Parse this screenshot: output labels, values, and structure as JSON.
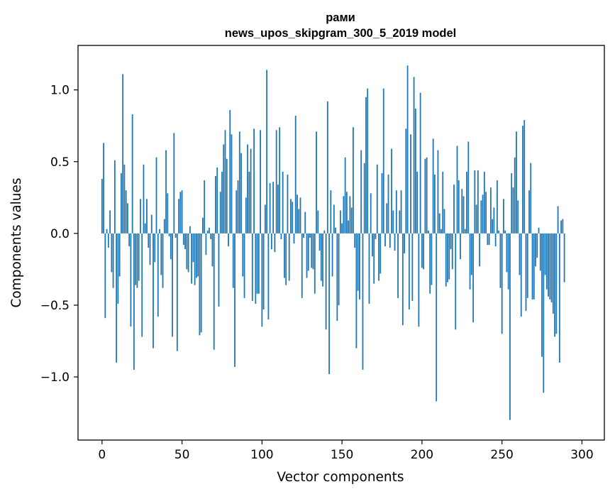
{
  "chart_data": {
    "type": "bar",
    "title_line1": "рами",
    "title_line2": "news_upos_skipgram_300_5_2019 model",
    "xlabel": "Vector components",
    "ylabel": "Components values",
    "xlim": [
      -15,
      314
    ],
    "ylim": [
      -1.44,
      1.31
    ],
    "xticks": [
      0,
      50,
      100,
      150,
      200,
      250,
      300
    ],
    "xtick_labels": [
      "0",
      "50",
      "100",
      "150",
      "200",
      "250",
      "300"
    ],
    "yticks": [
      -1.0,
      -0.5,
      0.0,
      0.5,
      1.0
    ],
    "ytick_labels": [
      "−1.0",
      "−0.5",
      "0.0",
      "0.5",
      "1.0"
    ],
    "grid": false,
    "bar_color": "#1f77b4",
    "values": [
      0.38,
      0.63,
      -0.59,
      0.03,
      -0.1,
      0.16,
      -0.27,
      -0.38,
      0.51,
      -0.9,
      -0.49,
      -0.3,
      0.42,
      1.11,
      0.48,
      0.3,
      0.21,
      -0.09,
      -0.65,
      0.83,
      -0.95,
      -0.36,
      -0.38,
      -0.33,
      0.24,
      -0.72,
      0.48,
      0.07,
      0.24,
      -0.1,
      -0.22,
      0.13,
      -0.8,
      -0.2,
      0.53,
      -0.58,
      0.03,
      -0.29,
      -0.38,
      0.1,
      0.58,
      0.28,
      -0.02,
      -0.18,
      -0.72,
      0.7,
      -0.03,
      -0.82,
      0.24,
      0.29,
      0.3,
      -0.08,
      -0.11,
      -0.25,
      -0.27,
      0.05,
      -0.35,
      -0.2,
      -0.36,
      -0.31,
      -0.3,
      -0.71,
      -0.69,
      0.11,
      0.37,
      -0.15,
      0.02,
      0.04,
      -0.04,
      -0.23,
      -0.81,
      0.4,
      0.46,
      -0.51,
      0.29,
      0.43,
      0.62,
      0.72,
      0.52,
      -0.09,
      0.86,
      0.69,
      -0.38,
      -0.93,
      0.3,
      0.37,
      0.71,
      0.56,
      -0.3,
      -0.45,
      0.25,
      0.62,
      0.43,
      0.59,
      -0.47,
      0.73,
      -0.49,
      -0.42,
      -0.42,
      0.72,
      -0.65,
      -0.53,
      0.2,
      1.14,
      -0.6,
      0.35,
      -0.11,
      0.36,
      -0.13,
      0.72,
      0.34,
      0.74,
      -0.04,
      0.43,
      -0.31,
      -0.36,
      0.41,
      -0.33,
      0.24,
      0.22,
      -0.07,
      0.82,
      0.27,
      0.17,
      0.25,
      -0.45,
      -0.03,
      0.15,
      -0.31,
      -0.26,
      -0.03,
      -0.24,
      -0.25,
      -0.42,
      0.71,
      0.16,
      -0.12,
      -0.33,
      -0.37,
      0.02,
      -0.67,
      0.92,
      -0.98,
      0.3,
      -0.3,
      0.2,
      0.04,
      -0.61,
      -0.5,
      0.16,
      0.07,
      0.26,
      0.53,
      0.29,
      0.09,
      0.26,
      0.18,
      0.74,
      -0.1,
      -0.8,
      -0.4,
      -0.46,
      0.58,
      -0.95,
      0.49,
      0.95,
      1.01,
      -0.49,
      0.28,
      -0.16,
      -0.35,
      -0.04,
      0.48,
      -0.33,
      -0.28,
      0.42,
      1.01,
      -0.09,
      0.21,
      0.41,
      -0.1,
      0.59,
      0.16,
      -0.12,
      0.3,
      -0.45,
      0.16,
      0.3,
      -0.64,
      -0.14,
      0.73,
      1.17,
      -0.53,
      0.69,
      -0.47,
      1.09,
      0.87,
      0.43,
      -0.65,
      0.98,
      -0.24,
      -0.25,
      0.52,
      0.53,
      0.02,
      -0.42,
      -0.36,
      0.66,
      0.41,
      -1.17,
      0.58,
      0.14,
      0.03,
      0.43,
      0.17,
      -0.37,
      -0.34,
      -0.32,
      -0.11,
      -0.25,
      0.34,
      -0.67,
      0.61,
      0.37,
      -0.18,
      0.31,
      0.26,
      0.03,
      0.43,
      0.64,
      -0.39,
      -0.29,
      -0.62,
      0.44,
      0.2,
      0.44,
      -0.23,
      0.23,
      0.27,
      0.43,
      0.29,
      -0.08,
      -0.08,
      0.32,
      0.1,
      0.18,
      -0.09,
      0.37,
      0.02,
      -0.38,
      -0.7,
      0.24,
      0.02,
      -0.27,
      -0.39,
      -1.3,
      0.42,
      0.32,
      0.53,
      0.71,
      0.23,
      -0.29,
      -0.58,
      0.75,
      0.79,
      -0.54,
      -0.45,
      0.3,
      0.49,
      -0.46,
      -0.46,
      -0.23,
      -0.17,
      0.04,
      -0.26,
      -0.86,
      -1.11,
      -0.29,
      -0.39,
      -0.44,
      -0.46,
      -0.48,
      -0.56,
      -0.72,
      -0.7,
      0.19,
      -0.9,
      0.09,
      0.1,
      -0.34
    ]
  }
}
